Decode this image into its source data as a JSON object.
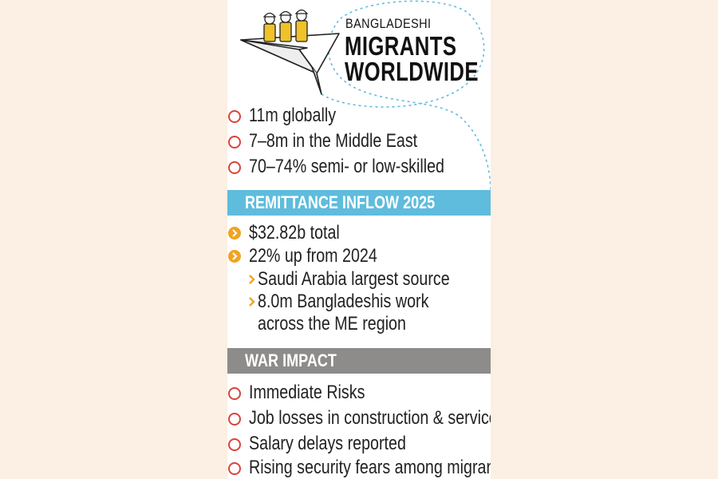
{
  "header": {
    "small_title": "BANGLADESHI",
    "big_title_line1": "MIGRANTS",
    "big_title_line2": "WORLDWIDE"
  },
  "overview": [
    "11m globally",
    "7–8m in the Middle East",
    "70–74% semi- or low-skilled"
  ],
  "remittance": {
    "heading": "REMITTANCE INFLOW 2025",
    "items": [
      "$32.82b total",
      "22% up from 2024"
    ],
    "sub_items": [
      "Saudi Arabia largest source",
      "8.0m Bangladeshis work"
    ],
    "sub_continuation": "across the ME region"
  },
  "war": {
    "heading": "WAR IMPACT",
    "items": [
      "Immediate Risks",
      "Job losses in construction & services",
      "Salary delays reported",
      "Rising security fears among migrants"
    ]
  },
  "colors": {
    "page_bg": "#fcefe4",
    "blue_band": "#5fbcdd",
    "grey_band": "#8e8c8a",
    "ring_red": "#d9443a",
    "bullet_orange": "#f0a422",
    "helmet_yellow": "#efc22a"
  },
  "icons": [
    "paper-plane-illustration",
    "worker-figures",
    "ring-bullet-icon",
    "chevron-bullet-icon"
  ]
}
